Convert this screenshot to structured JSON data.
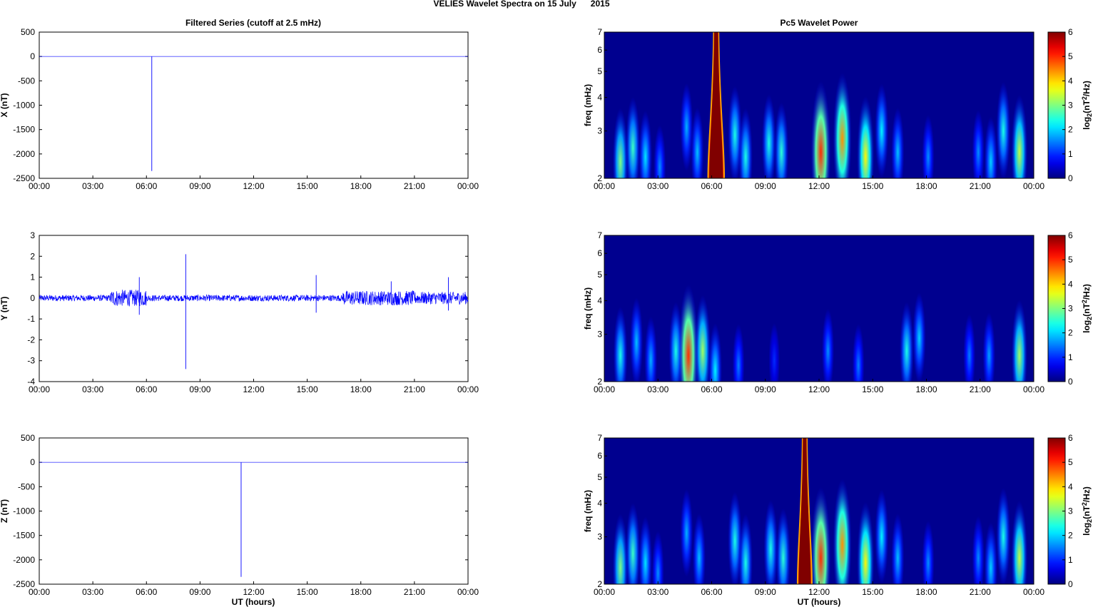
{
  "suptitle": "VELIES Wavelet Spectra on 15 July      2015",
  "left_title": "Filtered Series (cutoff at 2.5 mHz)",
  "right_title": "Pc5 Wavelet Power",
  "xlabel": "UT (hours)",
  "time_ticks": [
    "00:00",
    "03:00",
    "06:00",
    "09:00",
    "12:00",
    "15:00",
    "18:00",
    "21:00",
    "00:00"
  ],
  "freq_label": "freq (mHz)",
  "freq_ticks": [
    "2",
    "3",
    "4",
    "5",
    "6",
    "7"
  ],
  "colorbar_label": "log2(nT2/Hz)",
  "colorbar_ticks": [
    "0",
    "1",
    "2",
    "3",
    "4",
    "5",
    "6"
  ],
  "colors": {
    "series_line": "#0000ff",
    "spectrum_background": "#00008f",
    "spectrum_saturation": "#800000"
  },
  "chart_data": [
    {
      "type": "line",
      "component": "X",
      "ylabel": "X (nT)",
      "ylim": [
        -2500,
        500
      ],
      "yticks": [
        "500",
        "0",
        "-500",
        "-1000",
        "-1500",
        "-2000",
        "-2500"
      ],
      "xlim_hours": [
        0,
        24
      ],
      "baseline_nT": 0,
      "spikes": [
        {
          "t_hours": 6.3,
          "min_nT": -2350,
          "max_nT": 0
        }
      ]
    },
    {
      "type": "line",
      "component": "Y",
      "ylabel": "Y (nT)",
      "ylim": [
        -4,
        3
      ],
      "yticks": [
        "3",
        "2",
        "1",
        "0",
        "-1",
        "-2",
        "-3",
        "-4"
      ],
      "xlim_hours": [
        0,
        24
      ],
      "noise_envelope": [
        {
          "from_hours": 0,
          "to_hours": 4,
          "amp_nT": 0.15
        },
        {
          "from_hours": 4,
          "to_hours": 6,
          "amp_nT": 0.4
        },
        {
          "from_hours": 6,
          "to_hours": 17,
          "amp_nT": 0.15
        },
        {
          "from_hours": 17,
          "to_hours": 21,
          "amp_nT": 0.35
        },
        {
          "from_hours": 21,
          "to_hours": 24,
          "amp_nT": 0.3
        }
      ],
      "spikes": [
        {
          "t_hours": 5.6,
          "min_nT": -0.8,
          "max_nT": 1.0
        },
        {
          "t_hours": 8.2,
          "min_nT": -3.4,
          "max_nT": 2.1
        },
        {
          "t_hours": 15.5,
          "min_nT": -0.7,
          "max_nT": 1.1
        },
        {
          "t_hours": 19.7,
          "min_nT": -0.3,
          "max_nT": 0.8
        },
        {
          "t_hours": 22.9,
          "min_nT": -0.6,
          "max_nT": 1.0
        }
      ]
    },
    {
      "type": "line",
      "component": "Z",
      "ylabel": "Z (nT)",
      "ylim": [
        -2500,
        500
      ],
      "yticks": [
        "500",
        "0",
        "-500",
        "-1000",
        "-1500",
        "-2000",
        "-2500"
      ],
      "xlim_hours": [
        0,
        24
      ],
      "baseline_nT": 0,
      "spikes": [
        {
          "t_hours": 11.3,
          "min_nT": -2350,
          "max_nT": 0
        }
      ]
    },
    {
      "type": "heatmap",
      "component": "X",
      "ylabel": "freq (mHz)",
      "ylim_mHz": [
        2,
        7
      ],
      "scale": "log",
      "clim": [
        0,
        6
      ],
      "saturated_bands": [
        {
          "t_from_hours": 5.8,
          "t_to_hours": 6.7
        }
      ],
      "blobs": [
        {
          "t_hours": 0.9,
          "f_mHz": 2.3,
          "power": 3.0
        },
        {
          "t_hours": 1.6,
          "f_mHz": 2.6,
          "power": 2.6
        },
        {
          "t_hours": 2.3,
          "f_mHz": 2.4,
          "power": 2.1
        },
        {
          "t_hours": 3.1,
          "f_mHz": 2.2,
          "power": 1.6
        },
        {
          "t_hours": 4.6,
          "f_mHz": 3.1,
          "power": 1.8
        },
        {
          "t_hours": 5.2,
          "f_mHz": 2.5,
          "power": 1.9
        },
        {
          "t_hours": 7.3,
          "f_mHz": 2.9,
          "power": 2.4
        },
        {
          "t_hours": 7.9,
          "f_mHz": 2.4,
          "power": 2.4
        },
        {
          "t_hours": 9.2,
          "f_mHz": 2.7,
          "power": 2.4
        },
        {
          "t_hours": 9.9,
          "f_mHz": 2.5,
          "power": 2.5
        },
        {
          "t_hours": 12.1,
          "f_mHz": 2.5,
          "power": 5.0
        },
        {
          "t_hours": 13.3,
          "f_mHz": 2.8,
          "power": 4.4
        },
        {
          "t_hours": 14.6,
          "f_mHz": 2.4,
          "power": 3.8
        },
        {
          "t_hours": 15.5,
          "f_mHz": 3.0,
          "power": 2.2
        },
        {
          "t_hours": 16.4,
          "f_mHz": 2.5,
          "power": 1.9
        },
        {
          "t_hours": 18.1,
          "f_mHz": 2.4,
          "power": 1.6
        },
        {
          "t_hours": 20.9,
          "f_mHz": 2.5,
          "power": 1.6
        },
        {
          "t_hours": 21.6,
          "f_mHz": 2.3,
          "power": 2.0
        },
        {
          "t_hours": 22.3,
          "f_mHz": 3.0,
          "power": 2.4
        },
        {
          "t_hours": 23.2,
          "f_mHz": 2.5,
          "power": 3.4
        }
      ]
    },
    {
      "type": "heatmap",
      "component": "Y",
      "ylabel": "freq (mHz)",
      "ylim_mHz": [
        2,
        7
      ],
      "scale": "log",
      "clim": [
        0,
        6
      ],
      "saturated_bands": [],
      "blobs": [
        {
          "t_hours": 0.9,
          "f_mHz": 2.5,
          "power": 2.4
        },
        {
          "t_hours": 1.8,
          "f_mHz": 2.8,
          "power": 1.9
        },
        {
          "t_hours": 2.6,
          "f_mHz": 2.4,
          "power": 1.8
        },
        {
          "t_hours": 4.0,
          "f_mHz": 2.6,
          "power": 2.4
        },
        {
          "t_hours": 4.7,
          "f_mHz": 2.5,
          "power": 5.0
        },
        {
          "t_hours": 5.5,
          "f_mHz": 2.6,
          "power": 3.2
        },
        {
          "t_hours": 6.2,
          "f_mHz": 2.2,
          "power": 2.2
        },
        {
          "t_hours": 7.5,
          "f_mHz": 2.3,
          "power": 1.5
        },
        {
          "t_hours": 9.5,
          "f_mHz": 2.4,
          "power": 1.0
        },
        {
          "t_hours": 12.5,
          "f_mHz": 2.6,
          "power": 1.6
        },
        {
          "t_hours": 14.2,
          "f_mHz": 2.3,
          "power": 1.5
        },
        {
          "t_hours": 16.9,
          "f_mHz": 2.6,
          "power": 2.4
        },
        {
          "t_hours": 17.6,
          "f_mHz": 2.9,
          "power": 2.0
        },
        {
          "t_hours": 20.4,
          "f_mHz": 2.5,
          "power": 1.5
        },
        {
          "t_hours": 21.5,
          "f_mHz": 2.5,
          "power": 1.7
        },
        {
          "t_hours": 23.2,
          "f_mHz": 2.5,
          "power": 3.2
        }
      ]
    },
    {
      "type": "heatmap",
      "component": "Z",
      "ylabel": "freq (mHz)",
      "ylim_mHz": [
        2,
        7
      ],
      "scale": "log",
      "clim": [
        0,
        6
      ],
      "saturated_bands": [
        {
          "t_from_hours": 10.8,
          "t_to_hours": 11.6
        }
      ],
      "blobs": [
        {
          "t_hours": 0.9,
          "f_mHz": 2.3,
          "power": 3.0
        },
        {
          "t_hours": 1.6,
          "f_mHz": 2.6,
          "power": 2.6
        },
        {
          "t_hours": 2.3,
          "f_mHz": 2.4,
          "power": 2.1
        },
        {
          "t_hours": 3.0,
          "f_mHz": 2.2,
          "power": 1.6
        },
        {
          "t_hours": 4.6,
          "f_mHz": 3.1,
          "power": 1.8
        },
        {
          "t_hours": 5.3,
          "f_mHz": 2.5,
          "power": 1.9
        },
        {
          "t_hours": 7.3,
          "f_mHz": 2.9,
          "power": 2.4
        },
        {
          "t_hours": 7.9,
          "f_mHz": 2.4,
          "power": 2.4
        },
        {
          "t_hours": 9.3,
          "f_mHz": 2.7,
          "power": 2.4
        },
        {
          "t_hours": 10.0,
          "f_mHz": 2.5,
          "power": 2.5
        },
        {
          "t_hours": 12.1,
          "f_mHz": 2.5,
          "power": 5.0
        },
        {
          "t_hours": 13.3,
          "f_mHz": 2.8,
          "power": 4.4
        },
        {
          "t_hours": 14.6,
          "f_mHz": 2.4,
          "power": 3.8
        },
        {
          "t_hours": 15.5,
          "f_mHz": 3.0,
          "power": 2.2
        },
        {
          "t_hours": 16.4,
          "f_mHz": 2.5,
          "power": 1.9
        },
        {
          "t_hours": 18.1,
          "f_mHz": 2.4,
          "power": 1.6
        },
        {
          "t_hours": 20.9,
          "f_mHz": 2.5,
          "power": 1.6
        },
        {
          "t_hours": 21.6,
          "f_mHz": 2.3,
          "power": 2.0
        },
        {
          "t_hours": 22.3,
          "f_mHz": 3.0,
          "power": 2.4
        },
        {
          "t_hours": 23.2,
          "f_mHz": 2.5,
          "power": 3.4
        }
      ]
    }
  ]
}
